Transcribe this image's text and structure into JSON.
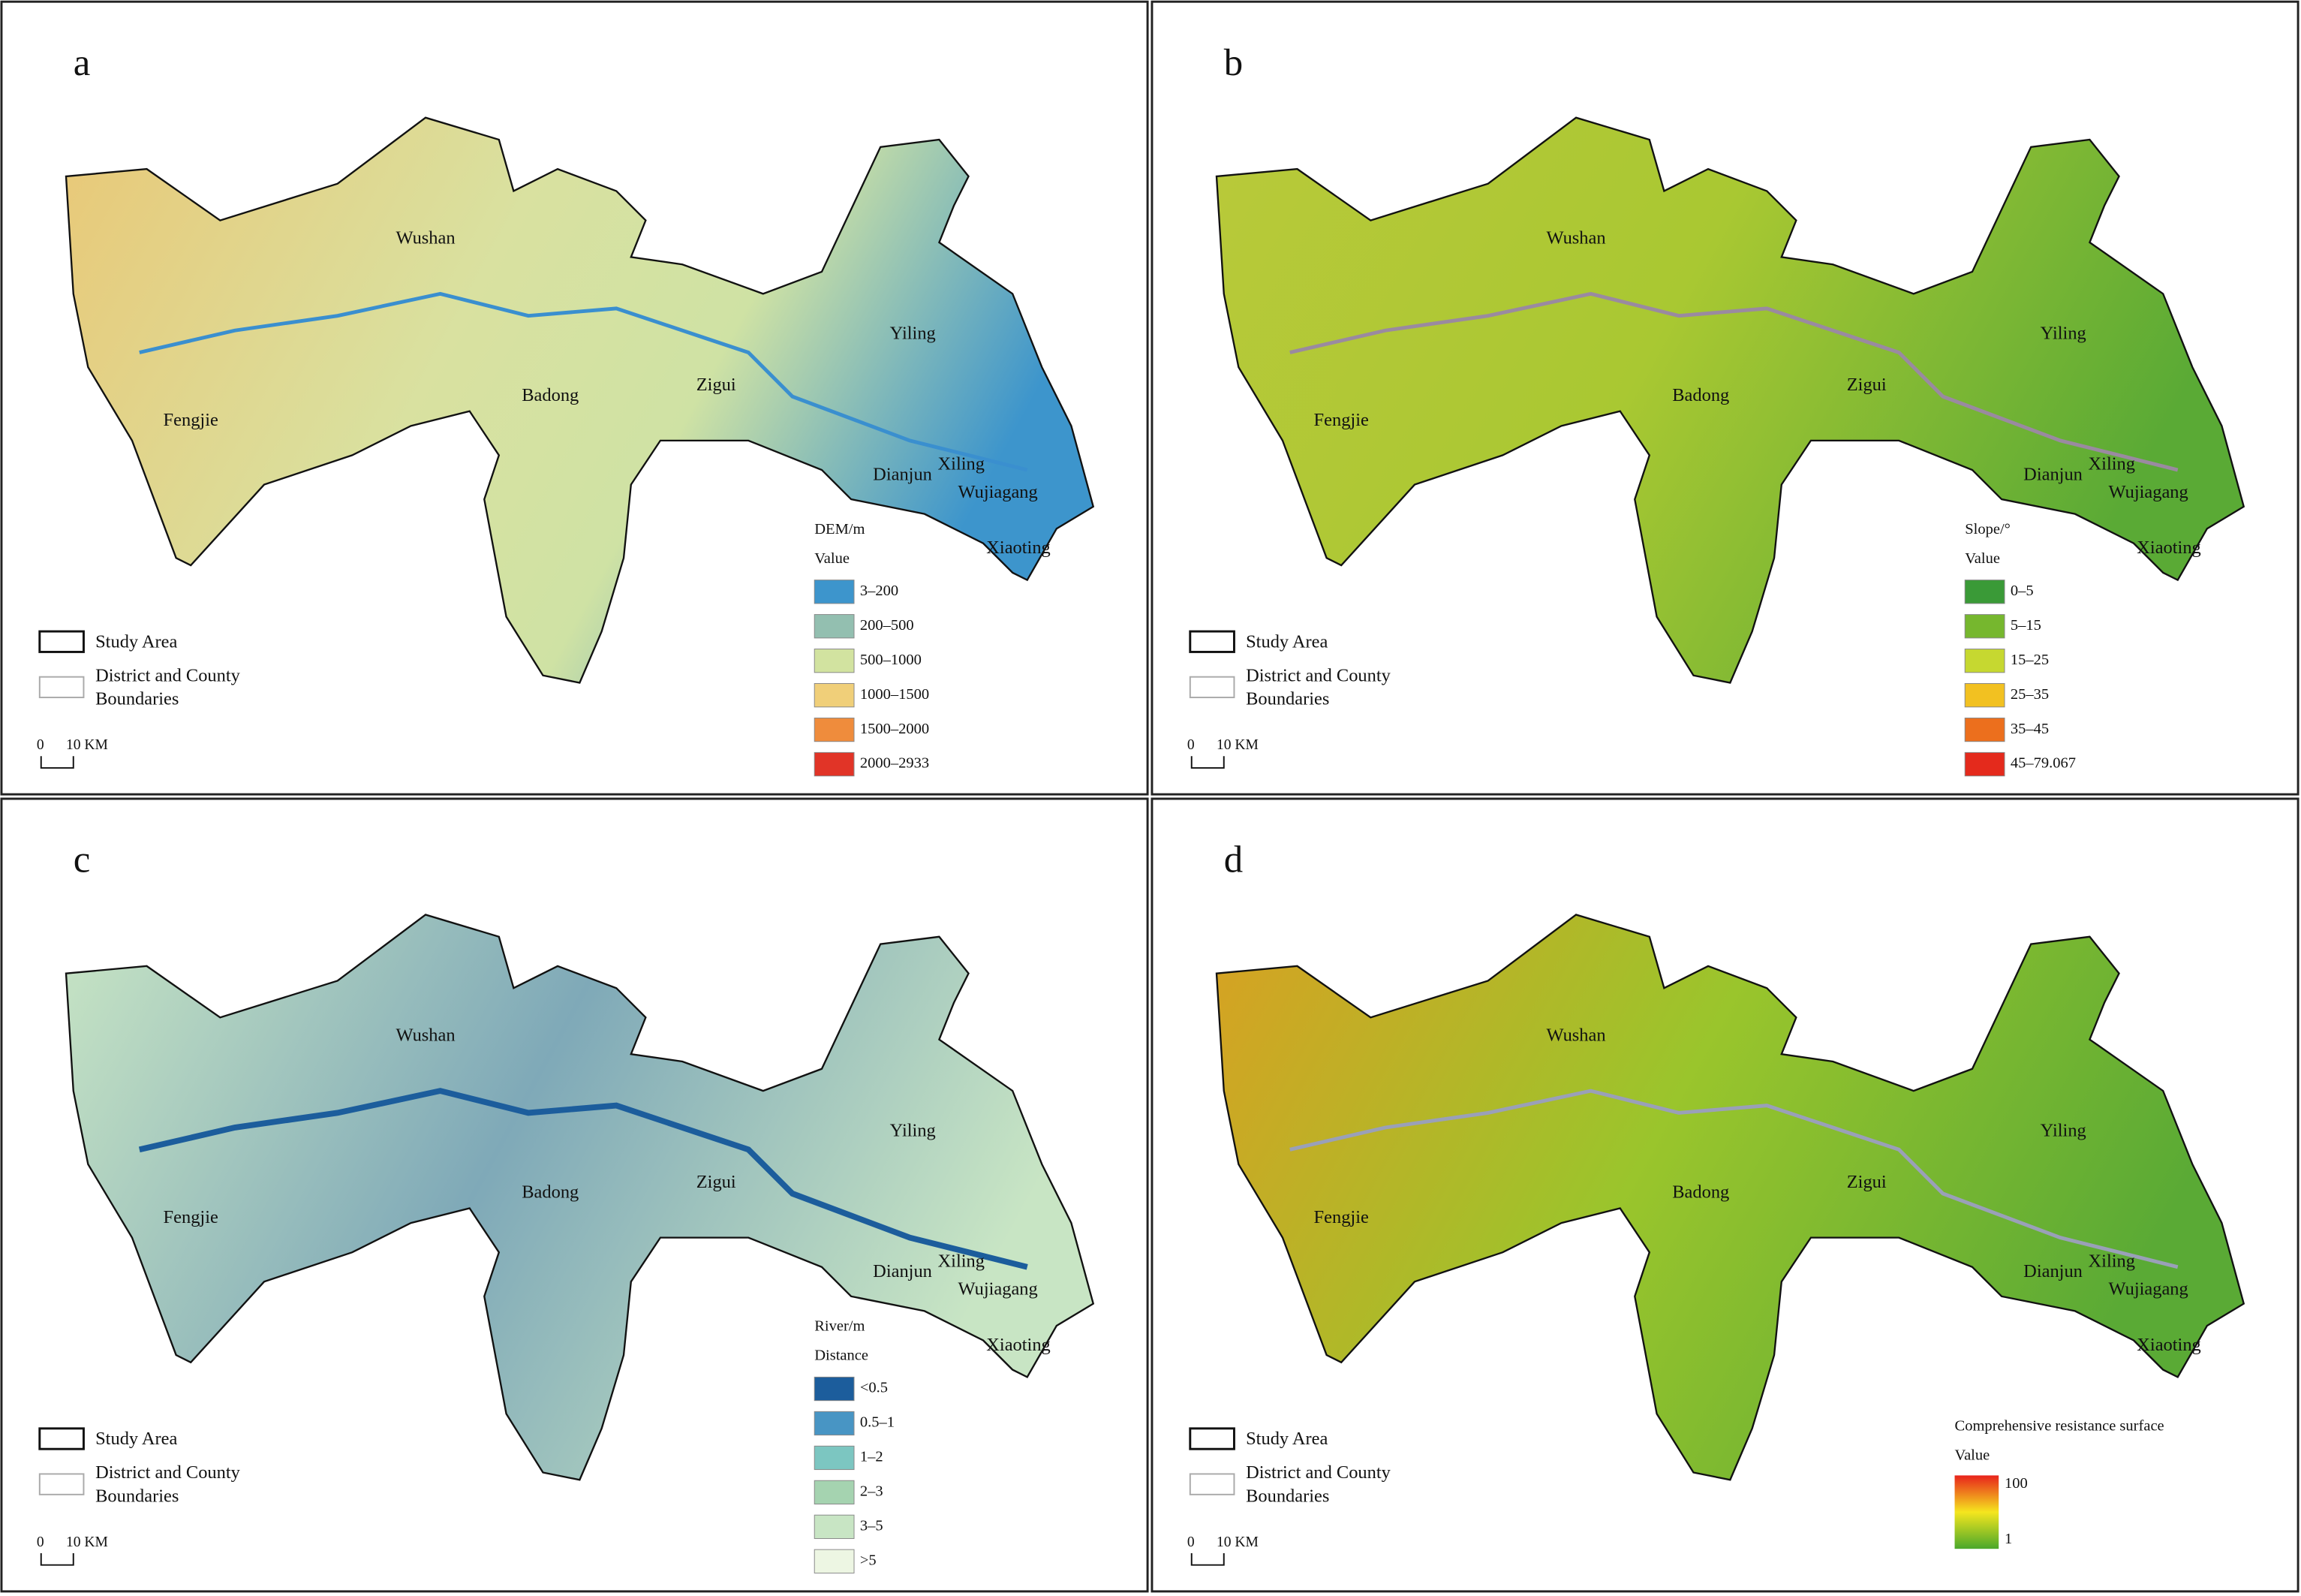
{
  "panels": [
    {
      "letter": "a",
      "places": [
        "Wushan",
        "Yiling",
        "Fengjie",
        "Badong",
        "Zigui",
        "Dianjun",
        "Xiling",
        "Wujiagang",
        "Xiaoting"
      ],
      "legend": {
        "title": "DEM/m",
        "subtitle": "Value",
        "items": [
          {
            "label": "3–200",
            "color": "#3d95cc"
          },
          {
            "label": "200–500",
            "color": "#93bfb0"
          },
          {
            "label": "500–1000",
            "color": "#d2e3a0"
          },
          {
            "label": "1000–1500",
            "color": "#f0cf79"
          },
          {
            "label": "1500–2000",
            "color": "#ef8c3c"
          },
          {
            "label": "2000–2933",
            "color": "#e13427"
          }
        ]
      },
      "boundary_legend": {
        "study_area": "Study Area",
        "district": [
          "District and County",
          "Boundaries"
        ]
      },
      "scale": {
        "start": "0",
        "end": "10 KM"
      }
    },
    {
      "letter": "b",
      "places": [
        "Wushan",
        "Yiling",
        "Fengjie",
        "Badong",
        "Zigui",
        "Dianjun",
        "Xiling",
        "Wujiagang",
        "Xiaoting"
      ],
      "legend": {
        "title": "Slope/°",
        "subtitle": "Value",
        "items": [
          {
            "label": "0–5",
            "color": "#3a9a37"
          },
          {
            "label": "5–15",
            "color": "#76b72e"
          },
          {
            "label": "15–25",
            "color": "#c6d830"
          },
          {
            "label": "25–35",
            "color": "#f2c121"
          },
          {
            "label": "35–45",
            "color": "#ec6f1d"
          },
          {
            "label": "45–79.067",
            "color": "#e42a1c"
          }
        ]
      },
      "boundary_legend": {
        "study_area": "Study Area",
        "district": [
          "District and County",
          "Boundaries"
        ]
      },
      "scale": {
        "start": "0",
        "end": "10 KM"
      }
    },
    {
      "letter": "c",
      "places": [
        "Wushan",
        "Yiling",
        "Fengjie",
        "Badong",
        "Zigui",
        "Dianjun",
        "Xiling",
        "Wujiagang",
        "Xiaoting"
      ],
      "legend": {
        "title": "River/m",
        "subtitle": "Distance",
        "items": [
          {
            "label": "<0.5",
            "color": "#1c5d9c"
          },
          {
            "label": "0.5–1",
            "color": "#4895c4"
          },
          {
            "label": "1–2",
            "color": "#7cc6c1"
          },
          {
            "label": "2–3",
            "color": "#a5d3b0"
          },
          {
            "label": "3–5",
            "color": "#c8e5c4"
          },
          {
            "label": ">5",
            "color": "#edf6e3"
          }
        ]
      },
      "boundary_legend": {
        "study_area": "Study Area",
        "district": [
          "District and County",
          "Boundaries"
        ]
      },
      "scale": {
        "start": "0",
        "end": "10 KM"
      }
    },
    {
      "letter": "d",
      "places": [
        "Wushan",
        "Yiling",
        "Fengjie",
        "Badong",
        "Zigui",
        "Dianjun",
        "Xiling",
        "Wujiagang",
        "Xiaoting"
      ],
      "legend": {
        "title": "Comprehensive resistance surface",
        "subtitle": "Value",
        "max": 100,
        "min": 1,
        "gradient": [
          "#e8231c",
          "#f5e61e",
          "#4aa82b"
        ]
      },
      "boundary_legend": {
        "study_area": "Study Area",
        "district": [
          "District and County",
          "Boundaries"
        ]
      },
      "scale": {
        "start": "0",
        "end": "10 KM"
      }
    }
  ]
}
